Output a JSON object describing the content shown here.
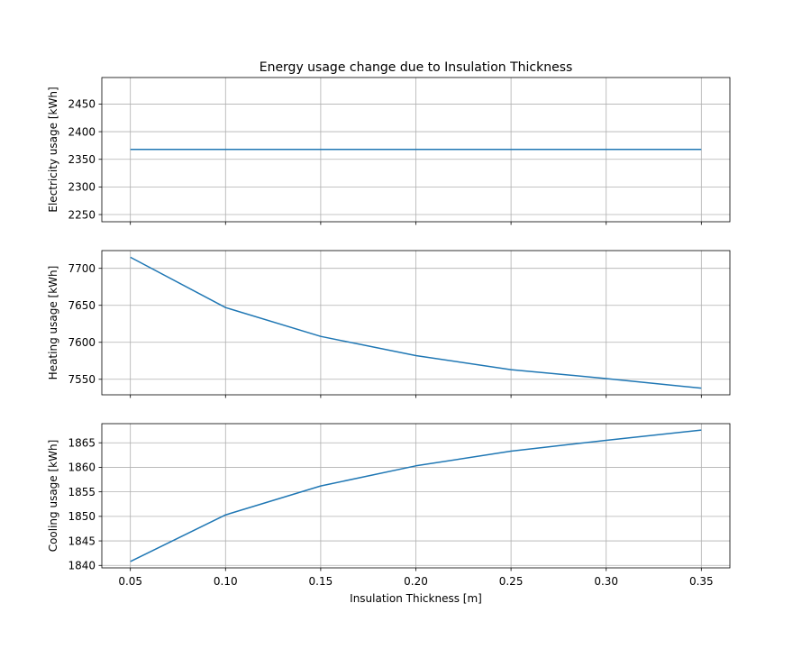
{
  "chart_data": {
    "type": "line",
    "title": "Energy usage change due to Insulation Thickness",
    "xlabel": "Insulation Thickness [m]",
    "x": [
      0.05,
      0.1,
      0.15,
      0.2,
      0.25,
      0.3,
      0.35
    ],
    "xlim": [
      0.035,
      0.365
    ],
    "xticks": [
      "0.05",
      "0.10",
      "0.15",
      "0.20",
      "0.25",
      "0.30",
      "0.35"
    ],
    "grid": true,
    "line_color": "#1f77b4",
    "subplots": [
      {
        "name": "electricity",
        "ylabel": "Electricity usage [kWh]",
        "y": [
          2368,
          2368,
          2368,
          2368,
          2368,
          2368,
          2368
        ],
        "ylim": [
          2237,
          2498
        ],
        "yticks": [
          2250,
          2300,
          2350,
          2400,
          2450
        ],
        "show_xtick_labels": false
      },
      {
        "name": "heating",
        "ylabel": "Heating usage [kWh]",
        "y": [
          7715,
          7647,
          7608,
          7582,
          7563,
          7551,
          7538
        ],
        "ylim": [
          7529,
          7724
        ],
        "yticks": [
          7550,
          7600,
          7650,
          7700
        ],
        "show_xtick_labels": false
      },
      {
        "name": "cooling",
        "ylabel": "Cooling usage [kWh]",
        "y": [
          1840.8,
          1850.3,
          1856.2,
          1860.3,
          1863.3,
          1865.5,
          1867.6
        ],
        "ylim": [
          1839.5,
          1868.9
        ],
        "yticks": [
          1840,
          1845,
          1850,
          1855,
          1860,
          1865
        ],
        "show_xtick_labels": true
      }
    ]
  }
}
